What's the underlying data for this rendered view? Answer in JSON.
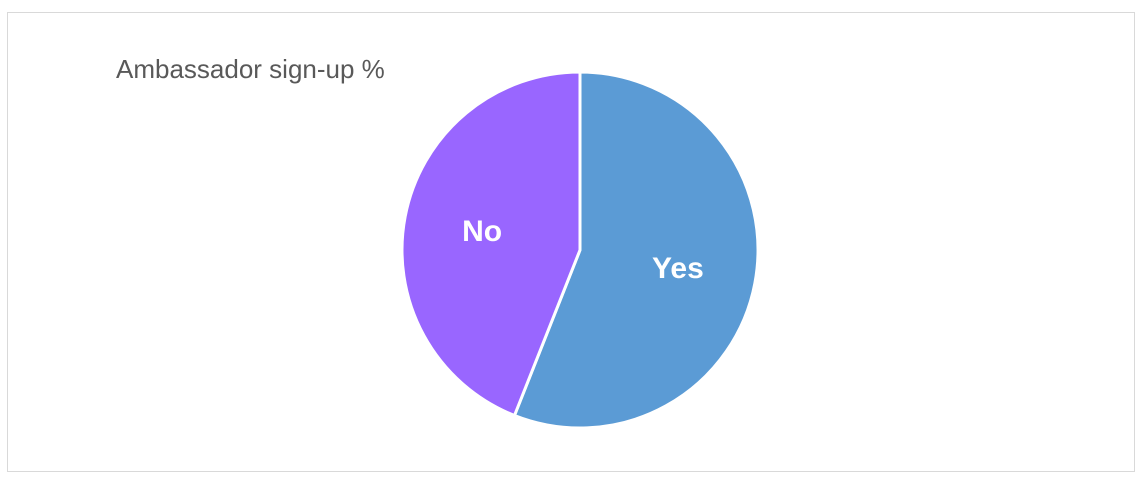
{
  "chart_data": {
    "type": "pie",
    "title": "Ambassador sign-up %",
    "slices": [
      {
        "label": "Yes",
        "value": 56,
        "color": "#5b9bd5"
      },
      {
        "label": "No",
        "value": 44,
        "color": "#9966ff"
      }
    ],
    "start_angle_deg": 0,
    "direction": "clockwise",
    "legend": "none",
    "slice_border_color": "#ffffff"
  }
}
